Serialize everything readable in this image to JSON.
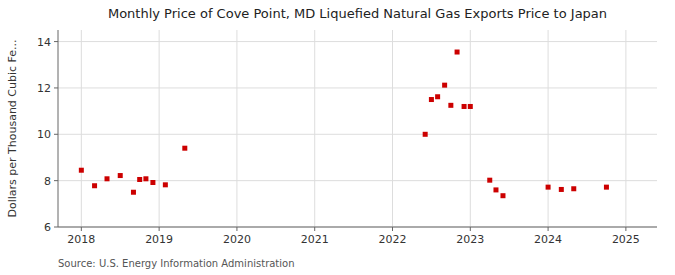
{
  "chart_data": {
    "type": "scatter",
    "title": "Monthly Price of Cove Point, MD Liquefied Natural Gas Exports Price to Japan",
    "ylabel": "Dollars per Thousand Cubic Fe...",
    "annotation": "Source: U.S. Energy Information Administration",
    "color": "#cc0000",
    "marker": "square",
    "grid": true,
    "xlim": [
      2017.7,
      2025.4
    ],
    "ylim": [
      6.0,
      14.5
    ],
    "xticks": [
      2018,
      2019,
      2020,
      2021,
      2022,
      2023,
      2024,
      2025
    ],
    "yticks": [
      6,
      8,
      10,
      12,
      14
    ],
    "x": [
      2018.0,
      2018.17,
      2018.33,
      2018.5,
      2018.67,
      2018.75,
      2018.83,
      2018.92,
      2019.08,
      2019.33,
      2022.42,
      2022.5,
      2022.58,
      2022.67,
      2022.75,
      2022.83,
      2022.92,
      2023.0,
      2023.25,
      2023.33,
      2023.42,
      2024.0,
      2024.17,
      2024.33,
      2024.75
    ],
    "values": [
      8.45,
      7.78,
      8.08,
      8.22,
      7.5,
      8.05,
      8.08,
      7.92,
      7.82,
      9.4,
      10.0,
      11.5,
      11.62,
      12.12,
      11.25,
      13.55,
      11.2,
      11.2,
      8.02,
      7.6,
      7.35,
      7.72,
      7.62,
      7.65,
      7.72
    ]
  }
}
